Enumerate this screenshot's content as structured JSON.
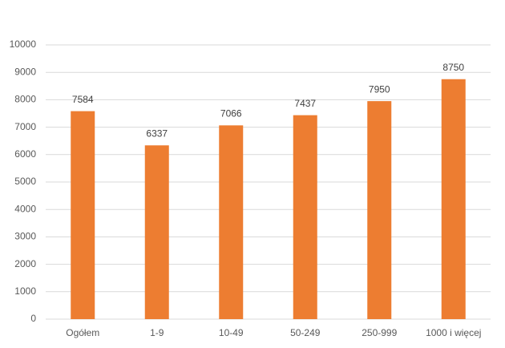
{
  "chart_data": {
    "type": "bar",
    "categories": [
      "Ogółem",
      "1-9",
      "10-49",
      "50-249",
      "250-999",
      "1000 i więcej"
    ],
    "values": [
      7584,
      6337,
      7066,
      7437,
      7950,
      8750
    ],
    "color": "#ed7d31",
    "ylim": [
      0,
      10000
    ],
    "yticks": [
      0,
      1000,
      2000,
      3000,
      4000,
      5000,
      6000,
      7000,
      8000,
      9000,
      10000
    ],
    "grid": true
  }
}
